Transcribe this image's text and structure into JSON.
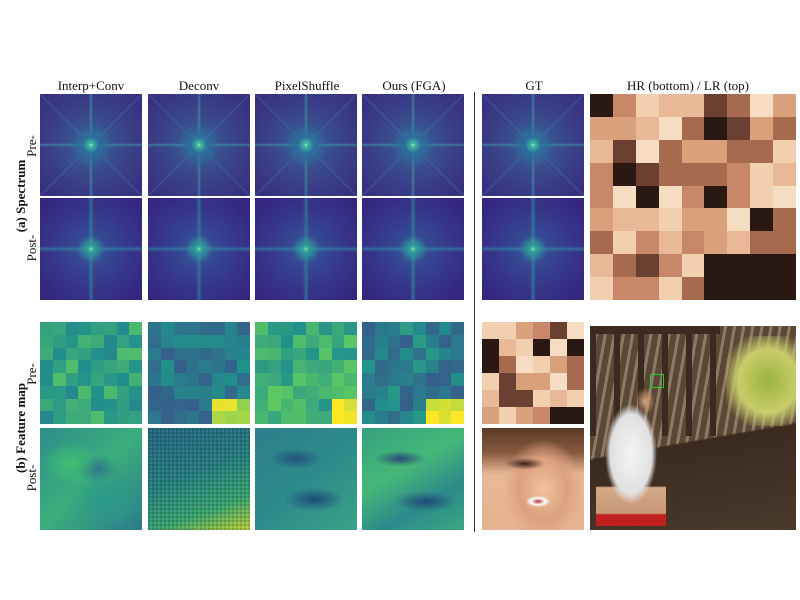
{
  "columns": {
    "interp": "Interp+Conv",
    "deconv": "Deconv",
    "pixelshuffle": "PixelShuffle",
    "ours": "Ours (FGA)",
    "gt": "GT",
    "hrlr": "HR (bottom) / LR (top)"
  },
  "sections": {
    "spectrum": "(a) Spectrum",
    "featuremap": "(b) Feature map"
  },
  "rows": {
    "pre": "Pre-",
    "post": "Post-"
  },
  "colors": {
    "viridis_dark": "#3b1f6e",
    "viridis_mid": "#2a8c8c",
    "viridis_light": "#d8e23a",
    "box_outline": "#22cc22"
  }
}
